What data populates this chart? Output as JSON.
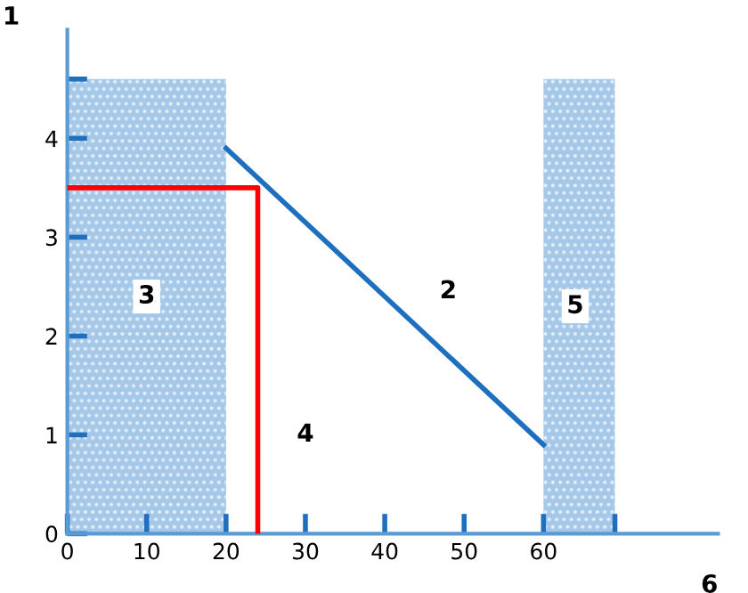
{
  "chart_data": {
    "type": "line",
    "xlabel": "6",
    "ylabel": "1",
    "series": [
      {
        "type": "histogram",
        "bins": [
          0,
          20,
          60,
          69
        ],
        "values": [
          4.6,
          0,
          4.6
        ],
        "color": "#5b9bd5"
      },
      {
        "x": [
          20,
          60
        ],
        "values": [
          3.9,
          0.9
        ],
        "color": "#1f6fbf"
      },
      {
        "x": [
          0,
          24,
          24
        ],
        "values": [
          3.5,
          3.5,
          0
        ],
        "color": "#ff0000"
      }
    ],
    "annotations": [
      {
        "text": "2",
        "x": 48,
        "y": 2.45
      },
      {
        "text": "3",
        "x": 10,
        "y": 2.4
      },
      {
        "text": "4",
        "x": 30,
        "y": 1.0
      },
      {
        "text": "5",
        "x": 64,
        "y": 2.3
      }
    ],
    "xlim": [
      0,
      82
    ],
    "ylim": [
      0,
      5.1
    ],
    "xticks": [
      0,
      10,
      20,
      30,
      40,
      50,
      60,
      {
        "value": 69,
        "label": null
      }
    ],
    "yticks": [
      0,
      1,
      2,
      3,
      4,
      {
        "value": 4.6,
        "label": null
      }
    ],
    "grid": false,
    "legend": false
  }
}
